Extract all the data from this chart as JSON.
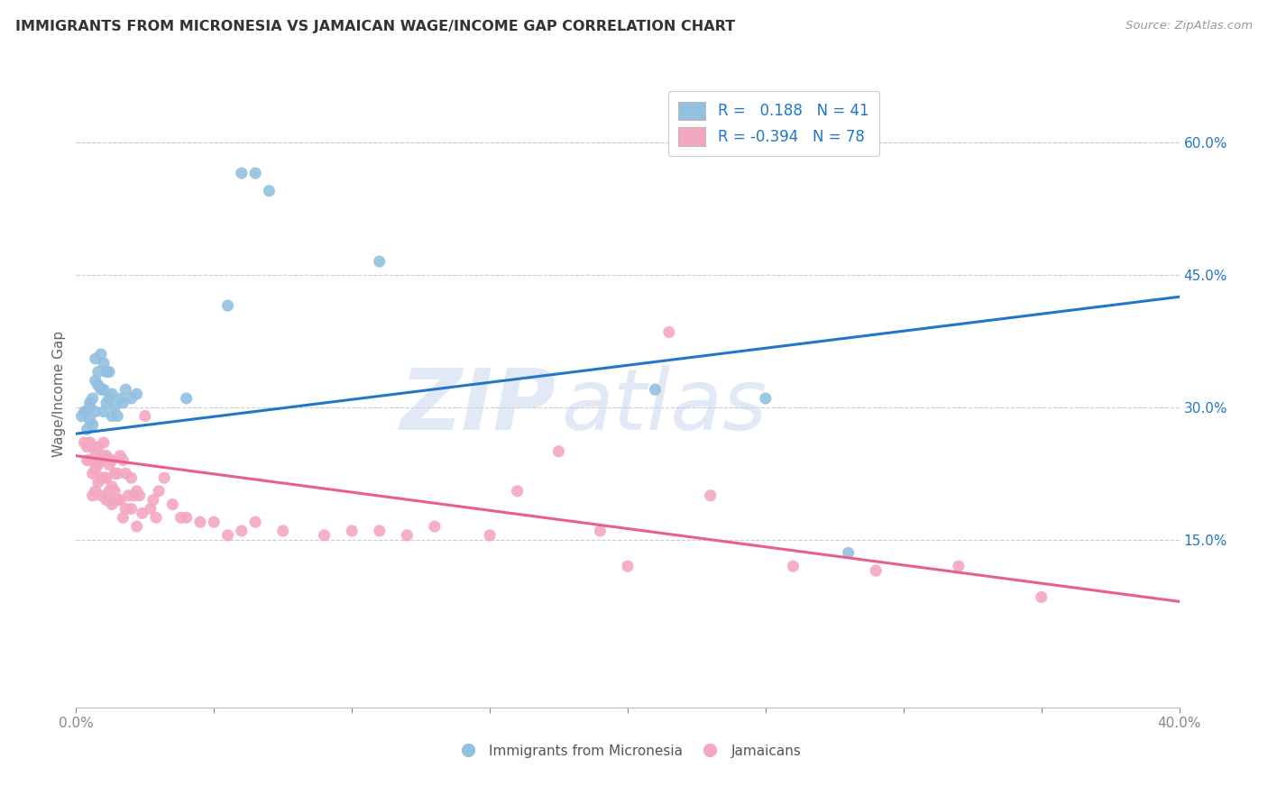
{
  "title": "IMMIGRANTS FROM MICRONESIA VS JAMAICAN WAGE/INCOME GAP CORRELATION CHART",
  "source": "Source: ZipAtlas.com",
  "ylabel": "Wage/Income Gap",
  "ytick_vals": [
    0.6,
    0.45,
    0.3,
    0.15
  ],
  "ytick_labels": [
    "60.0%",
    "45.0%",
    "30.0%",
    "15.0%"
  ],
  "xlim": [
    0.0,
    0.4
  ],
  "ylim": [
    -0.04,
    0.67
  ],
  "blue_color": "#92c0e0",
  "pink_color": "#f4a7c0",
  "blue_line_color": "#2176c7",
  "pink_line_color": "#e8608a",
  "watermark_zip": "ZIP",
  "watermark_atlas": "atlas",
  "blue_line_x0": 0.0,
  "blue_line_y0": 0.27,
  "blue_line_x1": 0.4,
  "blue_line_y1": 0.425,
  "pink_line_x0": 0.0,
  "pink_line_y0": 0.245,
  "pink_line_x1": 0.4,
  "pink_line_y1": 0.08,
  "micronesia_x": [
    0.002,
    0.003,
    0.004,
    0.004,
    0.005,
    0.005,
    0.005,
    0.006,
    0.006,
    0.007,
    0.007,
    0.007,
    0.008,
    0.008,
    0.009,
    0.009,
    0.01,
    0.01,
    0.01,
    0.011,
    0.011,
    0.012,
    0.012,
    0.013,
    0.013,
    0.014,
    0.015,
    0.016,
    0.017,
    0.018,
    0.02,
    0.022,
    0.04,
    0.055,
    0.06,
    0.065,
    0.07,
    0.11,
    0.21,
    0.25,
    0.28
  ],
  "micronesia_y": [
    0.29,
    0.295,
    0.295,
    0.275,
    0.3,
    0.285,
    0.305,
    0.31,
    0.28,
    0.295,
    0.33,
    0.355,
    0.34,
    0.325,
    0.32,
    0.36,
    0.295,
    0.32,
    0.35,
    0.305,
    0.34,
    0.31,
    0.34,
    0.315,
    0.29,
    0.3,
    0.29,
    0.31,
    0.305,
    0.32,
    0.31,
    0.315,
    0.31,
    0.415,
    0.565,
    0.565,
    0.545,
    0.465,
    0.32,
    0.31,
    0.135
  ],
  "jamaican_x": [
    0.003,
    0.004,
    0.004,
    0.005,
    0.005,
    0.006,
    0.006,
    0.006,
    0.007,
    0.007,
    0.007,
    0.008,
    0.008,
    0.008,
    0.009,
    0.009,
    0.009,
    0.01,
    0.01,
    0.01,
    0.011,
    0.011,
    0.011,
    0.012,
    0.012,
    0.012,
    0.013,
    0.013,
    0.013,
    0.014,
    0.014,
    0.015,
    0.015,
    0.016,
    0.016,
    0.017,
    0.017,
    0.018,
    0.018,
    0.019,
    0.02,
    0.02,
    0.021,
    0.022,
    0.022,
    0.023,
    0.024,
    0.025,
    0.027,
    0.028,
    0.029,
    0.03,
    0.032,
    0.035,
    0.038,
    0.04,
    0.045,
    0.05,
    0.055,
    0.06,
    0.065,
    0.075,
    0.09,
    0.1,
    0.11,
    0.12,
    0.13,
    0.15,
    0.16,
    0.175,
    0.19,
    0.2,
    0.215,
    0.23,
    0.26,
    0.29,
    0.32,
    0.35
  ],
  "jamaican_y": [
    0.26,
    0.24,
    0.255,
    0.24,
    0.26,
    0.2,
    0.225,
    0.255,
    0.23,
    0.205,
    0.245,
    0.215,
    0.235,
    0.255,
    0.22,
    0.2,
    0.24,
    0.22,
    0.245,
    0.26,
    0.195,
    0.22,
    0.245,
    0.195,
    0.205,
    0.235,
    0.19,
    0.21,
    0.24,
    0.205,
    0.225,
    0.195,
    0.225,
    0.195,
    0.245,
    0.175,
    0.24,
    0.185,
    0.225,
    0.2,
    0.185,
    0.22,
    0.2,
    0.165,
    0.205,
    0.2,
    0.18,
    0.29,
    0.185,
    0.195,
    0.175,
    0.205,
    0.22,
    0.19,
    0.175,
    0.175,
    0.17,
    0.17,
    0.155,
    0.16,
    0.17,
    0.16,
    0.155,
    0.16,
    0.16,
    0.155,
    0.165,
    0.155,
    0.205,
    0.25,
    0.16,
    0.12,
    0.385,
    0.2,
    0.12,
    0.115,
    0.12,
    0.085
  ]
}
